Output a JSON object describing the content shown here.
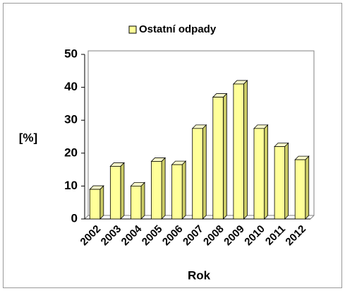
{
  "chart_data": {
    "type": "bar",
    "legend": "Ostatní odpady",
    "xlabel": "Rok",
    "ylabel": "[%]",
    "categories": [
      "2002",
      "2003",
      "2004",
      "2005",
      "2006",
      "2007",
      "2008",
      "2009",
      "2010",
      "2011",
      "2012"
    ],
    "values": [
      9,
      16,
      10,
      17.5,
      16.5,
      27.5,
      37,
      41,
      27.5,
      22,
      18
    ],
    "color": "#ffff99",
    "ylim": [
      0,
      50
    ],
    "yticks": [
      0,
      10,
      20,
      30,
      40,
      50
    ],
    "grid": false
  }
}
